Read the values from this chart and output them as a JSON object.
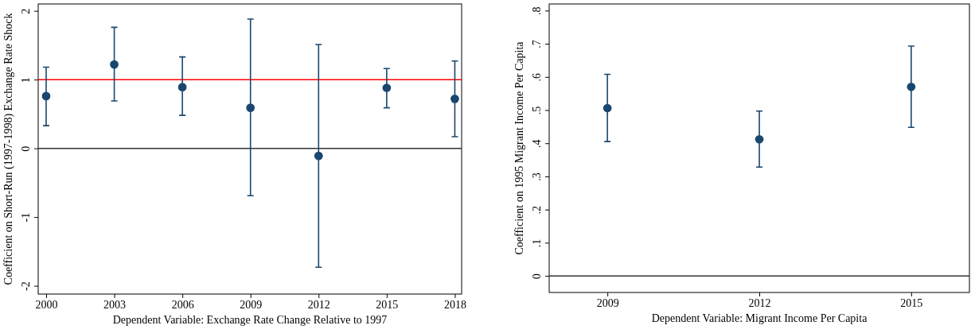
{
  "chart_data": [
    {
      "type": "scatter",
      "xlabel": "Dependent Variable: Exchange Rate Change Relative to 1997",
      "ylabel": "Coefficient on Short-Run (1997-1998) Exchange Rate Shock",
      "x": [
        2000,
        2003,
        2006,
        2009,
        2012,
        2015,
        2018
      ],
      "series": [
        {
          "color": "#1a476f",
          "values": [
            0.76,
            1.22,
            0.89,
            0.59,
            -0.11,
            0.88,
            0.72
          ],
          "errors": [
            [
              0.33,
              1.18
            ],
            [
              0.69,
              1.76
            ],
            [
              0.48,
              1.33
            ],
            [
              -0.69,
              1.88
            ],
            [
              -1.73,
              1.51
            ],
            [
              0.59,
              1.16
            ],
            [
              0.17,
              1.27
            ]
          ]
        }
      ],
      "xlim": [
        1999.65,
        2018.3
      ],
      "xticks": [
        2000,
        2003,
        2006,
        2009,
        2012,
        2015,
        2018
      ],
      "ylim": [
        -2.12,
        2.1
      ],
      "yticks": [
        -2,
        -1,
        0,
        1,
        2
      ],
      "marker": "circle",
      "grid": false,
      "ref_lines": [
        {
          "axis": "y",
          "value": 1,
          "color": "#ff0000"
        },
        {
          "axis": "y",
          "value": 0,
          "color": "#333333"
        }
      ]
    },
    {
      "type": "scatter",
      "xlabel": "Dependent Variable: Migrant Income Per Capita",
      "ylabel": "Coefficient on 1995 Migrant Income Per Capita",
      "x": [
        2009,
        2012,
        2015
      ],
      "series": [
        {
          "color": "#1a476f",
          "values": [
            0.506,
            0.412,
            0.57
          ],
          "errors": [
            [
              0.405,
              0.608
            ],
            [
              0.328,
              0.497
            ],
            [
              0.448,
              0.693
            ]
          ]
        }
      ],
      "xlim": [
        2007.85,
        2016.15
      ],
      "xticks": [
        2009,
        2012,
        2015
      ],
      "ylim": [
        -0.05,
        0.82
      ],
      "yticks": [
        0,
        {
          "value": 0.1,
          "label": ".1"
        },
        {
          "value": 0.2,
          "label": ".2"
        },
        {
          "value": 0.3,
          "label": ".3"
        },
        {
          "value": 0.4,
          "label": ".4"
        },
        {
          "value": 0.5,
          "label": ".5"
        },
        {
          "value": 0.6,
          "label": ".6"
        },
        {
          "value": 0.7,
          "label": ".7"
        },
        {
          "value": 0.8,
          "label": ".8"
        }
      ],
      "marker": "circle",
      "grid": false,
      "ref_lines": [
        {
          "axis": "y",
          "value": 0,
          "color": "#333333"
        }
      ]
    }
  ]
}
